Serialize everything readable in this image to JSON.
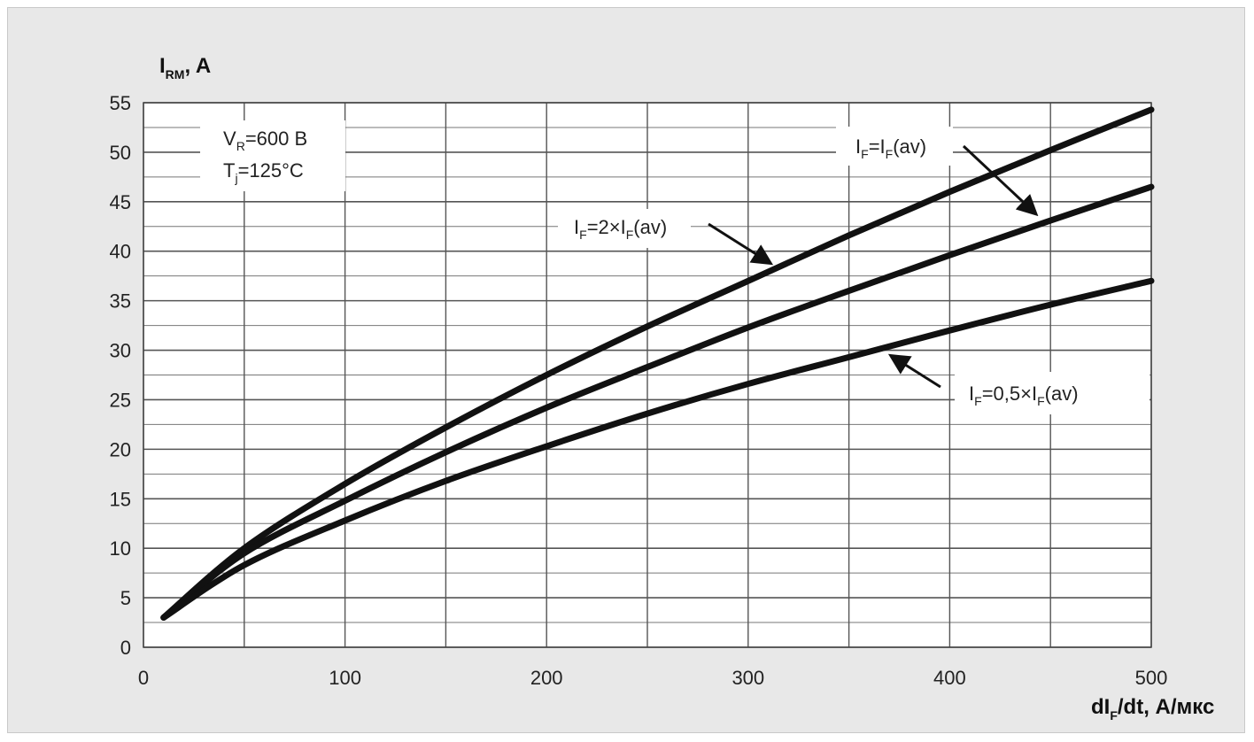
{
  "chart_data": {
    "type": "line",
    "ylabel_main": "I",
    "ylabel_sub": "RM",
    "ylabel_tail": ", A",
    "xlabel_main": "dI",
    "xlabel_sub": "F",
    "xlabel_tail": "/dt, А/мкс",
    "xlim": [
      0,
      500
    ],
    "ylim": [
      0,
      55
    ],
    "x_ticks": [
      0,
      100,
      200,
      300,
      400,
      500
    ],
    "y_ticks": [
      0,
      5,
      10,
      15,
      20,
      25,
      30,
      35,
      40,
      45,
      50,
      55
    ],
    "grid": true,
    "conditions": {
      "line1": {
        "main": "V",
        "sub": "R",
        "tail": "=600 В"
      },
      "line2": {
        "main": "T",
        "sub": "j",
        "tail": "=125°C"
      }
    },
    "series": [
      {
        "label_parts": [
          "I",
          "F",
          "=2×I",
          "F",
          "(av)"
        ],
        "x": [
          10,
          50,
          100,
          150,
          200,
          250,
          300,
          350,
          400,
          450,
          500
        ],
        "y": [
          3,
          10,
          16.5,
          22.2,
          27.5,
          32.4,
          37.0,
          41.6,
          46.0,
          50.2,
          54.3
        ]
      },
      {
        "label_parts": [
          "I",
          "F",
          "=I",
          "F",
          "(av)"
        ],
        "x": [
          10,
          50,
          100,
          150,
          200,
          250,
          300,
          350,
          400,
          450,
          500
        ],
        "y": [
          3,
          9.5,
          14.8,
          19.7,
          24.2,
          28.3,
          32.3,
          36.0,
          39.6,
          43.1,
          46.5
        ]
      },
      {
        "label_parts": [
          "I",
          "F",
          "=0,5×I",
          "F",
          "(av)"
        ],
        "x": [
          10,
          50,
          100,
          150,
          200,
          250,
          300,
          350,
          400,
          450,
          500
        ],
        "y": [
          3,
          8.3,
          12.8,
          16.8,
          20.3,
          23.6,
          26.6,
          29.3,
          32.0,
          34.6,
          37.0
        ]
      }
    ]
  }
}
